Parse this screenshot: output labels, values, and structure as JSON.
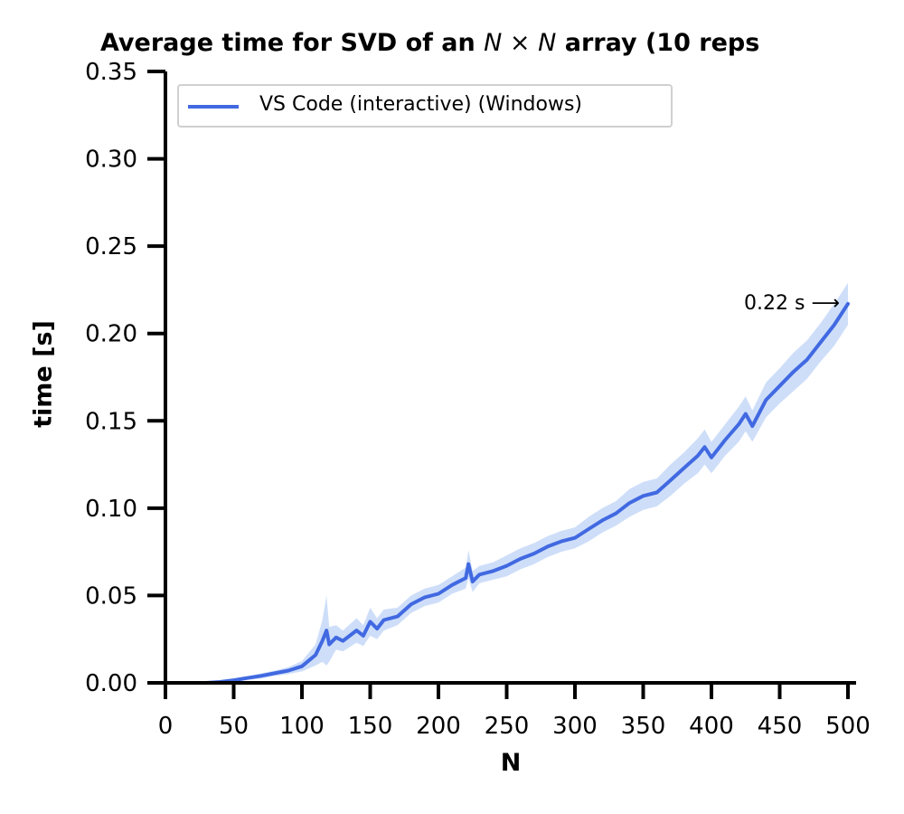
{
  "chart_data": {
    "type": "line",
    "title_prefix": "Average time for SVD of an ",
    "title_math": "N × N",
    "title_suffix": " array (10 reps",
    "xlabel": "N",
    "ylabel": "time [s]",
    "xlim": [
      0,
      500
    ],
    "ylim": [
      0,
      0.35
    ],
    "xticks": [
      "0",
      "50",
      "100",
      "150",
      "200",
      "250",
      "300",
      "350",
      "400",
      "450",
      "500"
    ],
    "yticks": [
      "0.00",
      "0.05",
      "0.10",
      "0.15",
      "0.20",
      "0.25",
      "0.30",
      "0.35"
    ],
    "grid": false,
    "legend_position": "top-left",
    "annotation": "0.22 s ⟶",
    "annotation_point": [
      500,
      0.217
    ],
    "series": [
      {
        "name": "VS Code (interactive) (Windows)",
        "color": "#4169e1",
        "band_color": "#c6d8f8",
        "x": [
          0,
          10,
          20,
          30,
          40,
          50,
          60,
          70,
          80,
          90,
          100,
          110,
          115,
          118,
          120,
          125,
          130,
          140,
          145,
          150,
          155,
          160,
          170,
          180,
          190,
          200,
          210,
          220,
          222,
          225,
          230,
          240,
          250,
          260,
          270,
          280,
          290,
          300,
          310,
          320,
          330,
          340,
          350,
          360,
          370,
          380,
          390,
          395,
          400,
          410,
          420,
          425,
          430,
          440,
          450,
          460,
          470,
          480,
          490,
          500
        ],
        "y": [
          0.0,
          0.0,
          0.0,
          0.0,
          0.0005,
          0.0015,
          0.0028,
          0.004,
          0.0055,
          0.007,
          0.0095,
          0.016,
          0.024,
          0.03,
          0.022,
          0.026,
          0.024,
          0.03,
          0.027,
          0.035,
          0.031,
          0.036,
          0.038,
          0.045,
          0.049,
          0.051,
          0.056,
          0.06,
          0.068,
          0.058,
          0.062,
          0.064,
          0.067,
          0.071,
          0.074,
          0.078,
          0.081,
          0.083,
          0.088,
          0.093,
          0.097,
          0.103,
          0.107,
          0.109,
          0.116,
          0.123,
          0.13,
          0.135,
          0.129,
          0.139,
          0.148,
          0.154,
          0.147,
          0.162,
          0.17,
          0.178,
          0.185,
          0.195,
          0.205,
          0.217
        ],
        "band": [
          0,
          0,
          0,
          0,
          0.0005,
          0.001,
          0.001,
          0.0015,
          0.0015,
          0.002,
          0.003,
          0.006,
          0.012,
          0.02,
          0.01,
          0.007,
          0.006,
          0.007,
          0.006,
          0.008,
          0.006,
          0.006,
          0.005,
          0.005,
          0.005,
          0.005,
          0.005,
          0.006,
          0.008,
          0.006,
          0.005,
          0.005,
          0.006,
          0.006,
          0.006,
          0.006,
          0.006,
          0.006,
          0.007,
          0.007,
          0.007,
          0.008,
          0.008,
          0.008,
          0.009,
          0.009,
          0.01,
          0.01,
          0.009,
          0.009,
          0.01,
          0.01,
          0.009,
          0.01,
          0.01,
          0.011,
          0.011,
          0.011,
          0.012,
          0.012
        ]
      }
    ]
  }
}
